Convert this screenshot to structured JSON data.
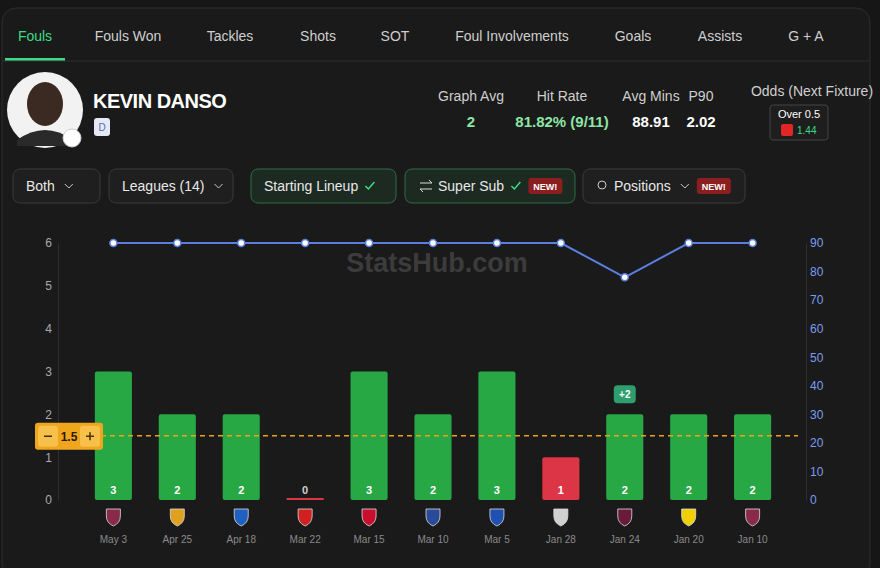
{
  "page": {
    "tabs": [
      "Fouls",
      "Fouls Won",
      "Tackles",
      "Shots",
      "SOT",
      "Foul Involvements",
      "Goals",
      "Assists",
      "G + A"
    ],
    "active_tab": "Fouls",
    "player": {
      "name": "KEVIN DANSO",
      "badge": "D"
    },
    "stats": [
      {
        "label": "Graph Avg",
        "value": "2"
      },
      {
        "label": "Hit Rate",
        "value": "81.82% (9/11)"
      },
      {
        "label": "Avg Mins",
        "value": "88.91"
      },
      {
        "label": "P90",
        "value": "2.02"
      }
    ],
    "odds": {
      "label": "Odds (Next Fixture)",
      "line": "Over 0.5",
      "price": "1.44"
    },
    "filters": [
      {
        "label": "Both",
        "kind": "dropdown"
      },
      {
        "label": "Leagues (14)",
        "kind": "dropdown"
      },
      {
        "label": "Starting Lineup",
        "kind": "toggle"
      },
      {
        "label": "Super Sub",
        "kind": "toggle",
        "badge": "NEW!"
      },
      {
        "label": "Positions",
        "kind": "dropdown",
        "badge": "NEW!"
      }
    ],
    "watermark": "StatsHub.com"
  },
  "chart_data": {
    "type": "bar",
    "categories": [
      "May 3",
      "Apr 25",
      "Apr 18",
      "Mar 22",
      "Mar 15",
      "Mar 10",
      "Mar 5",
      "Jan 28",
      "Jan 24",
      "Jan 20",
      "Jan 10"
    ],
    "series": [
      {
        "type": "bar",
        "values": [
          3,
          2,
          2,
          0,
          3,
          2,
          3,
          1,
          2,
          2,
          2
        ],
        "colors": [
          "#28a745",
          "#28a745",
          "#28a745",
          "#dc3545",
          "#28a745",
          "#28a745",
          "#28a745",
          "#dc3545",
          "#28a745",
          "#28a745",
          "#28a745"
        ]
      },
      {
        "type": "line",
        "axis": "y2",
        "color": "#5a7fe0",
        "marker": "circle",
        "values": [
          90,
          90,
          90,
          90,
          90,
          90,
          90,
          90,
          78,
          90,
          90
        ]
      }
    ],
    "ylim": [
      0,
      6
    ],
    "yticks": [
      0,
      1,
      2,
      3,
      4,
      5,
      6
    ],
    "y2lim": [
      0,
      90
    ],
    "y2ticks": [
      0,
      10,
      20,
      30,
      40,
      50,
      60,
      70,
      80,
      90
    ],
    "threshold": 1.5,
    "annotations": [
      {
        "text": "+2",
        "category": "Jan 24"
      }
    ],
    "data_labels": true,
    "grid": false
  }
}
